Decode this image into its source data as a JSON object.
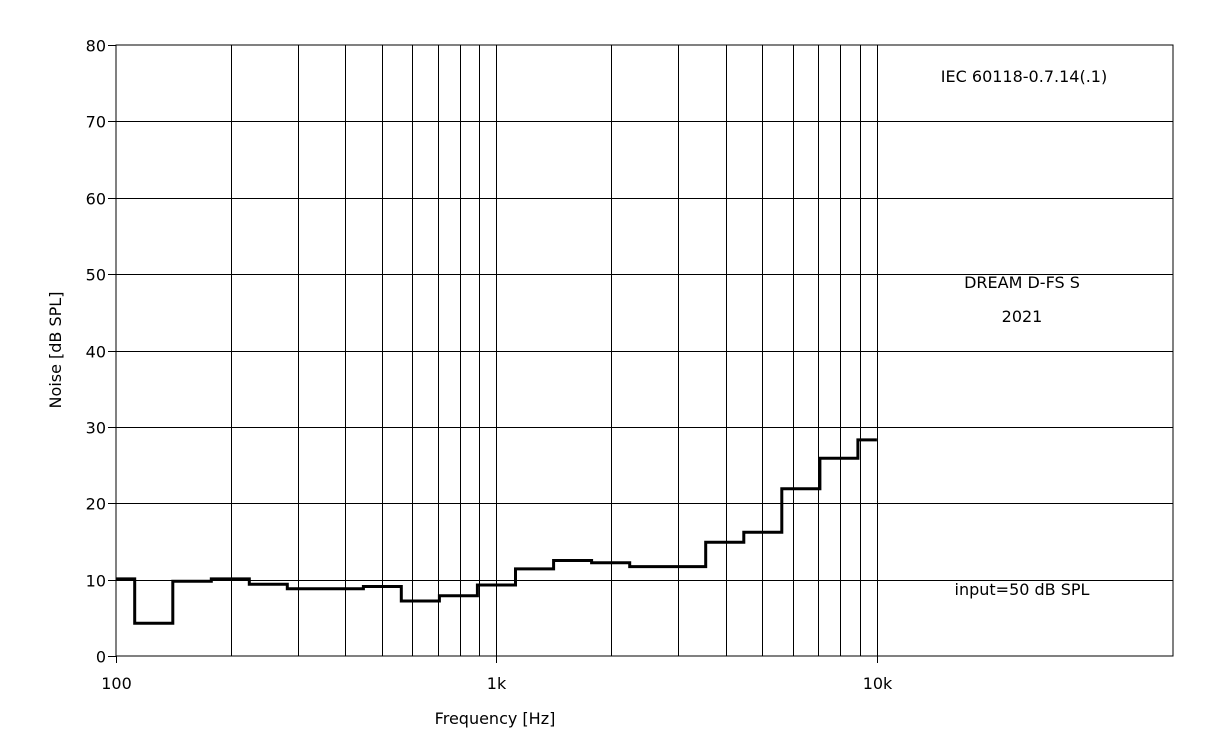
{
  "chart_data": {
    "type": "line",
    "xlabel": "Frequency [Hz]",
    "ylabel": "Noise [dB SPL]",
    "x_scale": "log",
    "xlim": [
      100,
      60000
    ],
    "ylim": [
      0,
      80
    ],
    "x_ticks": [
      {
        "value": 100,
        "label": "100"
      },
      {
        "value": 1000,
        "label": "1k"
      },
      {
        "value": 10000,
        "label": "10k"
      }
    ],
    "y_ticks": [
      0,
      10,
      20,
      30,
      40,
      50,
      60,
      70,
      80
    ],
    "grid": true,
    "series": [
      {
        "color": "#000000",
        "step": true,
        "x": [
          100,
          112,
          141,
          178,
          224,
          282,
          355,
          447,
          562,
          708,
          891,
          1122,
          1413,
          1778,
          2239,
          2818,
          3548,
          4467,
          5623,
          7079,
          8913,
          10000
        ],
        "y": [
          10.1,
          4.3,
          9.8,
          10.1,
          9.4,
          8.8,
          8.8,
          9.1,
          7.2,
          7.9,
          9.3,
          11.4,
          12.5,
          12.2,
          11.7,
          11.7,
          14.9,
          16.2,
          21.9,
          25.9,
          28.3,
          28.3
        ]
      }
    ],
    "annotations": {
      "standard": "IEC 60118-0.7.14(.1)",
      "model": "DREAM D-FS S",
      "year": "2021",
      "input": "input=50 dB SPL"
    }
  }
}
